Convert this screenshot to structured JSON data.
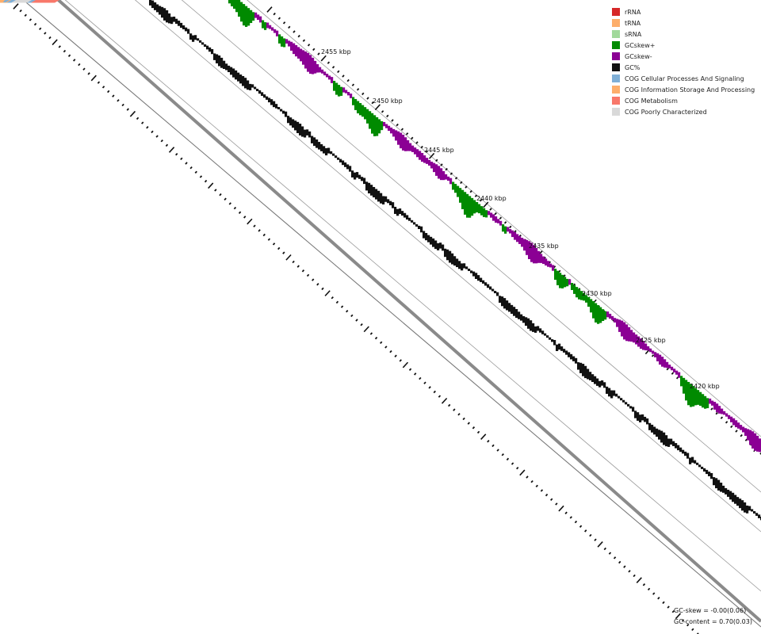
{
  "legend": [
    {
      "label": "rRNA",
      "color": "#d62728"
    },
    {
      "label": "tRNA",
      "color": "#fdae6b"
    },
    {
      "label": "sRNA",
      "color": "#a1d99b"
    },
    {
      "label": "GCskew+",
      "color": "#008a00"
    },
    {
      "label": "GCskew-",
      "color": "#8b0094"
    },
    {
      "label": "GC%",
      "color": "#111111"
    },
    {
      "label": "COG Cellular Processes And Signaling",
      "color": "#7fafd6"
    },
    {
      "label": "COG Information Storage And Processing",
      "color": "#fdae6b"
    },
    {
      "label": "COG Metabolism",
      "color": "#f8786a"
    },
    {
      "label": "COG Poorly Characterized",
      "color": "#d9d9d9"
    }
  ],
  "stats": {
    "gc_skew": "GC-skew = -0.00(0.06)",
    "gc_content": "GC-content = 0.70(0.03)"
  },
  "ticks": [
    "2455 kbp",
    "2450 kbp",
    "2445 kbp",
    "2440 kbp",
    "2435 kbp",
    "2430 kbp",
    "2425 kbp",
    "2420 kbp"
  ]
}
